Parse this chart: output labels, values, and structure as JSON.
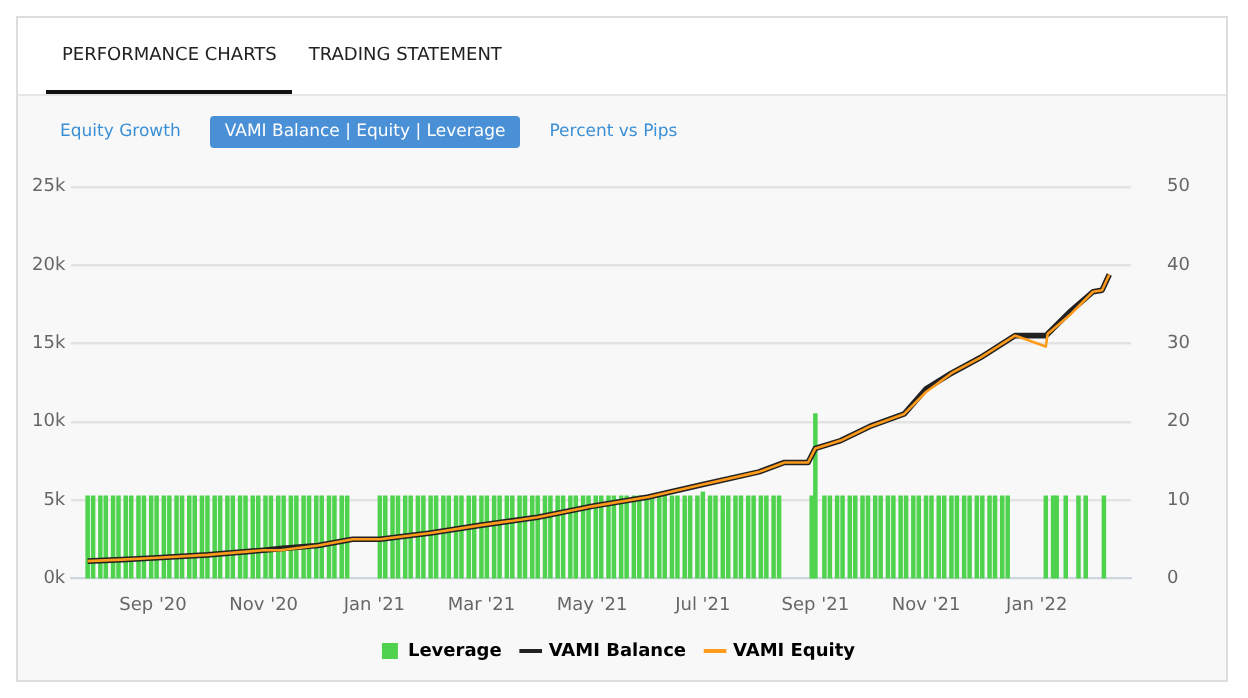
{
  "chart_data": {
    "type": "line",
    "annotations": [
      "PERFORMANCE CHARTS",
      "TRADING STATEMENT",
      "Equity Growth",
      "VAMI Balance | Equity | Leverage",
      "Percent vs Pips"
    ],
    "legend": "bottom",
    "grid": "y",
    "marker": "none",
    "xlim": [
      "2020-07-18",
      "2022-02-22"
    ],
    "xticks": [
      {
        "value": "2020-09-01",
        "label": "Sep '20"
      },
      {
        "value": "2020-11-01",
        "label": "Nov '20"
      },
      {
        "value": "2021-01-01",
        "label": "Jan '21"
      },
      {
        "value": "2021-03-01",
        "label": "Mar '21"
      },
      {
        "value": "2021-05-01",
        "label": "May '21"
      },
      {
        "value": "2021-07-01",
        "label": "Jul '21"
      },
      {
        "value": "2021-09-01",
        "label": "Sep '21"
      },
      {
        "value": "2021-11-01",
        "label": "Nov '21"
      },
      {
        "value": "2022-01-01",
        "label": "Jan '22"
      }
    ],
    "ylim": [
      0,
      25000
    ],
    "yticks": [
      {
        "value": 0,
        "label": "0k"
      },
      {
        "value": 5000,
        "label": "5k"
      },
      {
        "value": 10000,
        "label": "10k"
      },
      {
        "value": 15000,
        "label": "15k"
      },
      {
        "value": 20000,
        "label": "20k"
      },
      {
        "value": 25000,
        "label": "25k"
      }
    ],
    "y2lim": [
      0,
      50
    ],
    "y2ticks": [
      0,
      10,
      20,
      30,
      40,
      50
    ],
    "series": [
      {
        "name": "Leverage",
        "type": "bar",
        "axis": "y2",
        "color": "#4fd34f",
        "x": [
          "2020-07-27",
          "2020-07-30",
          "2020-08-03",
          "2020-08-06",
          "2020-08-10",
          "2020-08-13",
          "2020-08-17",
          "2020-08-20",
          "2020-08-24",
          "2020-08-27",
          "2020-08-31",
          "2020-09-03",
          "2020-09-07",
          "2020-09-10",
          "2020-09-14",
          "2020-09-17",
          "2020-09-21",
          "2020-09-24",
          "2020-09-28",
          "2020-10-01",
          "2020-10-05",
          "2020-10-08",
          "2020-10-12",
          "2020-10-15",
          "2020-10-19",
          "2020-10-22",
          "2020-10-26",
          "2020-10-29",
          "2020-11-02",
          "2020-11-05",
          "2020-11-09",
          "2020-11-12",
          "2020-11-16",
          "2020-11-19",
          "2020-11-23",
          "2020-11-26",
          "2020-11-30",
          "2020-12-03",
          "2020-12-07",
          "2020-12-10",
          "2020-12-14",
          "2020-12-17",
          "2021-01-04",
          "2021-01-07",
          "2021-01-11",
          "2021-01-14",
          "2021-01-18",
          "2021-01-21",
          "2021-01-25",
          "2021-01-28",
          "2021-02-01",
          "2021-02-04",
          "2021-02-08",
          "2021-02-11",
          "2021-02-15",
          "2021-02-18",
          "2021-02-22",
          "2021-02-25",
          "2021-03-01",
          "2021-03-04",
          "2021-03-08",
          "2021-03-11",
          "2021-03-15",
          "2021-03-18",
          "2021-03-22",
          "2021-03-25",
          "2021-03-29",
          "2021-04-01",
          "2021-04-05",
          "2021-04-08",
          "2021-04-12",
          "2021-04-15",
          "2021-04-19",
          "2021-04-22",
          "2021-04-26",
          "2021-04-29",
          "2021-05-03",
          "2021-05-06",
          "2021-05-10",
          "2021-05-13",
          "2021-05-17",
          "2021-05-20",
          "2021-05-24",
          "2021-05-27",
          "2021-05-31",
          "2021-06-03",
          "2021-06-07",
          "2021-06-10",
          "2021-06-14",
          "2021-06-17",
          "2021-06-21",
          "2021-06-24",
          "2021-06-28",
          "2021-07-01",
          "2021-07-05",
          "2021-07-08",
          "2021-07-12",
          "2021-07-15",
          "2021-07-19",
          "2021-07-22",
          "2021-07-26",
          "2021-07-29",
          "2021-08-02",
          "2021-08-05",
          "2021-08-09",
          "2021-08-12",
          "2021-08-30",
          "2021-09-01",
          "2021-09-06",
          "2021-09-09",
          "2021-09-13",
          "2021-09-16",
          "2021-09-20",
          "2021-09-23",
          "2021-09-27",
          "2021-09-30",
          "2021-10-04",
          "2021-10-07",
          "2021-10-11",
          "2021-10-14",
          "2021-10-18",
          "2021-10-21",
          "2021-10-25",
          "2021-10-28",
          "2021-11-01",
          "2021-11-04",
          "2021-11-08",
          "2021-11-11",
          "2021-11-15",
          "2021-11-18",
          "2021-11-22",
          "2021-11-25",
          "2021-11-29",
          "2021-12-02",
          "2021-12-06",
          "2021-12-09",
          "2021-12-13",
          "2021-12-16",
          "2022-01-06",
          "2022-01-10",
          "2022-01-12",
          "2022-01-17",
          "2022-01-24",
          "2022-01-28",
          "2022-02-07"
        ],
        "values": [
          10.5,
          10.5,
          10.5,
          10.5,
          10.5,
          10.5,
          10.5,
          10.5,
          10.5,
          10.5,
          10.5,
          10.5,
          10.5,
          10.5,
          10.5,
          10.5,
          10.5,
          10.5,
          10.5,
          10.5,
          10.5,
          10.5,
          10.5,
          10.5,
          10.5,
          10.5,
          10.5,
          10.5,
          10.5,
          10.5,
          10.5,
          10.5,
          10.5,
          10.5,
          10.5,
          10.5,
          10.5,
          10.5,
          10.5,
          10.5,
          10.5,
          10.5,
          10.5,
          10.5,
          10.5,
          10.5,
          10.5,
          10.5,
          10.5,
          10.5,
          10.5,
          10.5,
          10.5,
          10.5,
          10.5,
          10.5,
          10.5,
          10.5,
          10.5,
          10.5,
          10.5,
          10.5,
          10.5,
          10.5,
          10.5,
          10.5,
          10.5,
          10.5,
          10.5,
          10.5,
          10.5,
          10.5,
          10.5,
          10.5,
          10.5,
          10.5,
          10.5,
          10.5,
          10.5,
          10.5,
          10.5,
          10.5,
          10.5,
          10.5,
          10.5,
          10.5,
          10.5,
          10.5,
          10.5,
          10.5,
          10.5,
          10.5,
          10.5,
          11,
          10.5,
          10.5,
          10.5,
          10.5,
          10.5,
          10.5,
          10.5,
          10.5,
          10.5,
          10.5,
          10.5,
          10.5,
          10.5,
          21,
          10.5,
          10.5,
          10.5,
          10.5,
          10.5,
          10.5,
          10.5,
          10.5,
          10.5,
          10.5,
          10.5,
          10.5,
          10.5,
          10.5,
          10.5,
          10.5,
          10.5,
          10.5,
          10.5,
          10.5,
          10.5,
          10.5,
          10.5,
          10.5,
          10.5,
          10.5,
          10.5,
          10.5,
          10.5,
          10.5,
          10.5,
          10.5,
          10.5,
          10.5,
          10.5,
          10.5,
          10.5
        ]
      },
      {
        "name": "VAMI Balance",
        "color": "#222222",
        "x": [
          "2020-07-27",
          "2020-08-15",
          "2020-09-01",
          "2020-10-01",
          "2020-11-01",
          "2020-11-10",
          "2020-12-01",
          "2020-12-20",
          "2021-01-04",
          "2021-02-01",
          "2021-03-01",
          "2021-04-01",
          "2021-05-01",
          "2021-06-01",
          "2021-07-01",
          "2021-08-01",
          "2021-08-15",
          "2021-08-28",
          "2021-09-01",
          "2021-09-15",
          "2021-10-01",
          "2021-10-20",
          "2021-11-01",
          "2021-11-15",
          "2021-12-01",
          "2021-12-20",
          "2022-01-06",
          "2022-01-07",
          "2022-01-20",
          "2022-02-01",
          "2022-02-06",
          "2022-02-10"
        ],
        "values": [
          1100,
          1200,
          1300,
          1500,
          1800,
          1900,
          2100,
          2500,
          2500,
          2900,
          3400,
          3900,
          4600,
          5200,
          6000,
          6800,
          7400,
          7400,
          8300,
          8800,
          9700,
          10500,
          12100,
          13100,
          14100,
          15500,
          15500,
          15600,
          17100,
          18300,
          18400,
          19400
        ]
      },
      {
        "name": "VAMI Equity",
        "color": "#ff9a1a",
        "x": [
          "2020-07-27",
          "2020-08-15",
          "2020-09-01",
          "2020-10-01",
          "2020-11-01",
          "2020-11-10",
          "2020-12-01",
          "2020-12-20",
          "2021-01-04",
          "2021-02-01",
          "2021-03-01",
          "2021-04-01",
          "2021-05-01",
          "2021-06-01",
          "2021-07-01",
          "2021-08-01",
          "2021-08-15",
          "2021-08-28",
          "2021-09-01",
          "2021-09-15",
          "2021-10-01",
          "2021-10-20",
          "2021-11-01",
          "2021-11-15",
          "2021-12-01",
          "2021-12-20",
          "2022-01-06",
          "2022-01-07",
          "2022-01-20",
          "2022-02-01",
          "2022-02-06",
          "2022-02-10"
        ],
        "values": [
          1100,
          1200,
          1300,
          1500,
          1800,
          1800,
          2100,
          2500,
          2500,
          2900,
          3400,
          3900,
          4600,
          5200,
          6000,
          6800,
          7400,
          7400,
          8300,
          8800,
          9700,
          10500,
          11900,
          13100,
          14100,
          15500,
          14800,
          15600,
          16900,
          18300,
          18400,
          19400
        ]
      }
    ]
  }
}
